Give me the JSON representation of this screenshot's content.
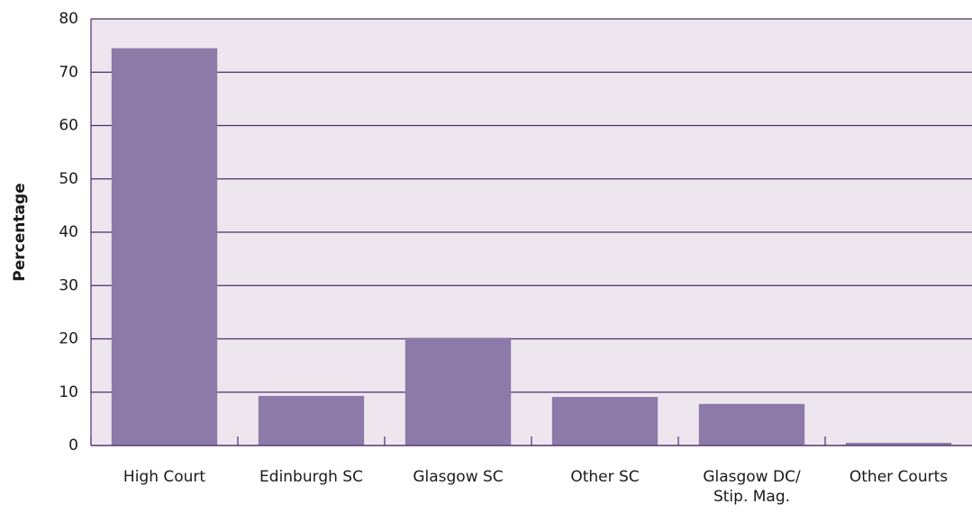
{
  "chart_data": {
    "type": "bar",
    "y_label": "Percentage",
    "categories": [
      "High Court",
      "Edinburgh SC",
      "Glasgow SC",
      "Other SC",
      "Glasgow DC/\nStip. Mag.",
      "Other Courts"
    ],
    "values": [
      74.5,
      9.3,
      20.2,
      9.1,
      7.8,
      0.5
    ],
    "color": "#8e7aa8",
    "grid_color": "#4b2d6e",
    "ylim": [
      0,
      80
    ],
    "yticks": [
      0,
      10,
      20,
      30,
      40,
      50,
      60,
      70,
      80
    ],
    "grid": true
  }
}
